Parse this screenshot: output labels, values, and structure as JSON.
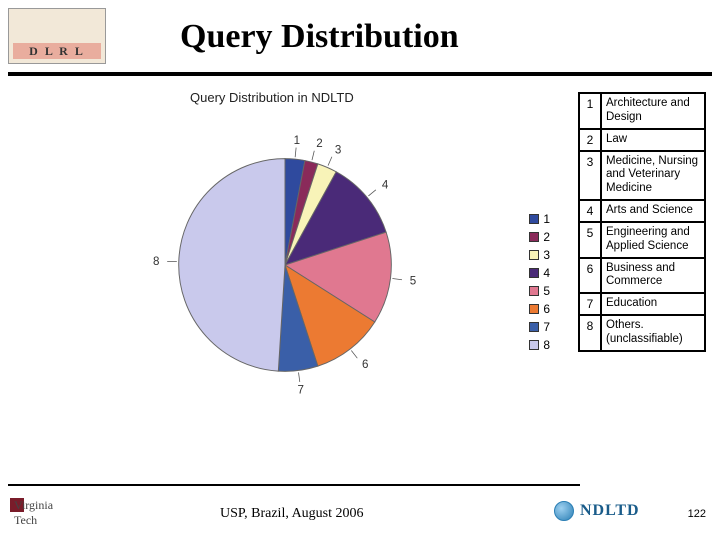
{
  "title": "Query Distribution",
  "logo_top_left": "D L R L",
  "chart": {
    "title": "Query Distribution in NDLTD",
    "type": "pie",
    "slices": [
      {
        "id": 1,
        "value": 3,
        "color": "#2f4a9e"
      },
      {
        "id": 2,
        "value": 2,
        "color": "#8a2a5a"
      },
      {
        "id": 3,
        "value": 3,
        "color": "#f8f3b8"
      },
      {
        "id": 4,
        "value": 12,
        "color": "#4a2a78"
      },
      {
        "id": 5,
        "value": 14,
        "color": "#e07890"
      },
      {
        "id": 6,
        "value": 11,
        "color": "#ec7a32"
      },
      {
        "id": 7,
        "value": 6,
        "color": "#3a5fa8"
      },
      {
        "id": 8,
        "value": 49,
        "color": "#c9c9ec"
      }
    ],
    "legend_items": [
      {
        "label": "1",
        "color": "#2f4a9e"
      },
      {
        "label": "2",
        "color": "#8a2a5a"
      },
      {
        "label": "3",
        "color": "#f8f3b8"
      },
      {
        "label": "4",
        "color": "#4a2a78"
      },
      {
        "label": "5",
        "color": "#e07890"
      },
      {
        "label": "6",
        "color": "#ec7a32"
      },
      {
        "label": "7",
        "color": "#3a5fa8"
      },
      {
        "label": "8",
        "color": "#c9c9ec"
      }
    ],
    "stroke_color": "#666",
    "stroke_width": 1
  },
  "category_table": [
    {
      "num": "1",
      "label": "Architecture and Design"
    },
    {
      "num": "2",
      "label": "Law"
    },
    {
      "num": "3",
      "label": "Medicine, Nursing and Veterinary Medicine"
    },
    {
      "num": "4",
      "label": "Arts and Science"
    },
    {
      "num": "5",
      "label": "Engineering and Applied Science"
    },
    {
      "num": "6",
      "label": "Business and Commerce"
    },
    {
      "num": "7",
      "label": "Education"
    },
    {
      "num": "8",
      "label": "Others. (unclassifiable)"
    }
  ],
  "footer": {
    "left_text": "Virginia\nTech",
    "center_text": "USP, Brazil, August 2006",
    "right_text": "NDLTD",
    "page_num": "122"
  }
}
